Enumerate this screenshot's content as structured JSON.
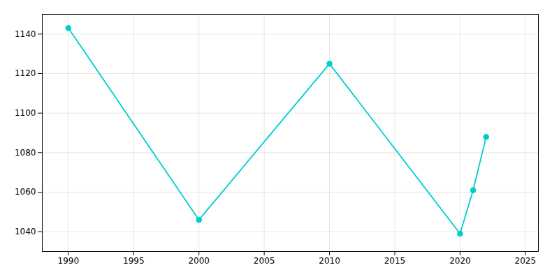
{
  "chart_data": {
    "type": "line",
    "x": [
      1990,
      2000,
      2010,
      2020,
      2021,
      2022
    ],
    "values": [
      1143,
      1046,
      1125,
      1039,
      1061,
      1088
    ],
    "color": "#00CDCD",
    "marker": "circle",
    "xlim": [
      1988,
      2026
    ],
    "ylim": [
      1030,
      1150
    ],
    "xticks": [
      1990,
      1995,
      2000,
      2005,
      2010,
      2015,
      2020,
      2025
    ],
    "yticks": [
      1040,
      1060,
      1080,
      1100,
      1120,
      1140
    ],
    "grid": true
  }
}
